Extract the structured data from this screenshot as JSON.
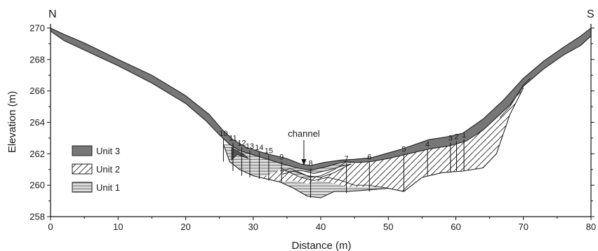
{
  "chart_data": {
    "type": "diagram",
    "title": "",
    "xlabel": "Distance (m)",
    "ylabel": "Elevation (m)",
    "xlim": [
      0,
      80
    ],
    "ylim": [
      258,
      270
    ],
    "x_ticks": [
      "0",
      "10",
      "20",
      "30",
      "40",
      "50",
      "60",
      "70",
      "80"
    ],
    "y_ticks": [
      "258",
      "260",
      "262",
      "264",
      "266",
      "268",
      "270"
    ],
    "orientation": {
      "left": "N",
      "right": "S"
    },
    "legend": [
      {
        "label": "Unit 3",
        "fill": "solid-gray"
      },
      {
        "label": "Unit 2",
        "fill": "diagonal-hatch"
      },
      {
        "label": "Unit 1",
        "fill": "horizontal-lines"
      }
    ],
    "annotation": {
      "label": "channel",
      "x": 37.5,
      "y": 261.3
    },
    "sections": [
      {
        "label": "1",
        "x": 61.2,
        "top": 262.9,
        "bottom": 260.9
      },
      {
        "label": "2",
        "x": 60.1,
        "top": 262.8,
        "bottom": 260.9
      },
      {
        "label": "3",
        "x": 59.2,
        "top": 262.7,
        "bottom": 260.8
      },
      {
        "label": "4",
        "x": 55.8,
        "top": 262.3,
        "bottom": 260.6
      },
      {
        "label": "5",
        "x": 52.3,
        "top": 262.0,
        "bottom": 259.6
      },
      {
        "label": "6",
        "x": 47.2,
        "top": 261.5,
        "bottom": 259.6
      },
      {
        "label": "7",
        "x": 43.8,
        "top": 261.4,
        "bottom": 259.5
      },
      {
        "label": "8",
        "x": 38.5,
        "top": 261.1,
        "bottom": 259.2
      },
      {
        "label": "9",
        "x": 34.2,
        "top": 261.5,
        "bottom": 260.2
      },
      {
        "label": "15",
        "x": 32.3,
        "top": 261.9,
        "bottom": 260.3
      },
      {
        "label": "14",
        "x": 30.9,
        "top": 262.1,
        "bottom": 260.4
      },
      {
        "label": "13",
        "x": 29.5,
        "top": 262.2,
        "bottom": 260.5
      },
      {
        "label": "12",
        "x": 28.3,
        "top": 262.4,
        "bottom": 260.6
      },
      {
        "label": "11",
        "x": 27.0,
        "top": 262.7,
        "bottom": 260.9
      },
      {
        "label": "10",
        "x": 25.6,
        "top": 263.0,
        "bottom": 261.5
      }
    ]
  }
}
